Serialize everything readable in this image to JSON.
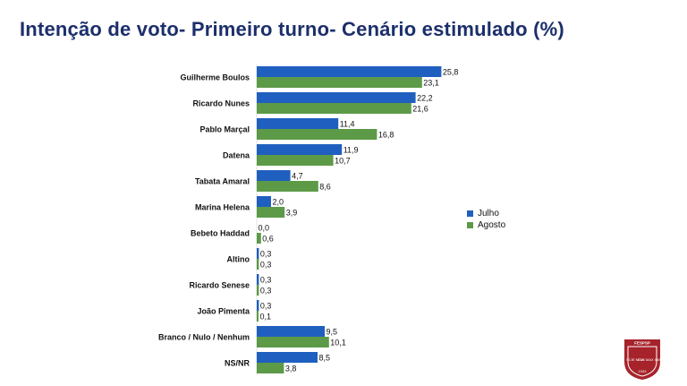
{
  "header": {
    "title": "Intenção de voto- Primeiro turno- Cenário estimulado (%)"
  },
  "colors": {
    "julho": "#1f5fbf",
    "agosto": "#5c9a48",
    "title": "#1c2f6b",
    "logo": "#a6232b"
  },
  "legend": [
    {
      "label": "Julho",
      "color": "#1f5fbf"
    },
    {
      "label": "Agosto",
      "color": "#5c9a48"
    }
  ],
  "chart_data": {
    "type": "bar",
    "orientation": "horizontal",
    "title": "Intenção de voto- Primeiro turno- Cenário estimulado (%)",
    "categories": [
      "Guilherme Boulos",
      "Ricardo Nunes",
      "Pablo Marçal",
      "Datena",
      "Tabata Amaral",
      "Marina Helena",
      "Bebeto Haddad",
      "Altino",
      "Ricardo Senese",
      "João Pimenta",
      "Branco / Nulo / Nenhum",
      "NS/NR"
    ],
    "series": [
      {
        "name": "Julho",
        "values": [
          25.8,
          22.2,
          11.4,
          11.9,
          4.7,
          2.0,
          0.0,
          0.3,
          0.3,
          0.3,
          9.5,
          8.5
        ],
        "labels": [
          "25,8",
          "22,2",
          "11,4",
          "11,9",
          "4,7",
          "2,0",
          "0,0",
          "0,3",
          "0,3",
          "0,3",
          "9,5",
          "8,5"
        ]
      },
      {
        "name": "Agosto",
        "values": [
          23.1,
          21.6,
          16.8,
          10.7,
          8.6,
          3.9,
          0.6,
          0.3,
          0.3,
          0.1,
          10.1,
          3.8
        ],
        "labels": [
          "23,1",
          "21,6",
          "16,8",
          "10,7",
          "8,6",
          "3,9",
          "0,6",
          "0,3",
          "0,3",
          "0,1",
          "10,1",
          "3,8"
        ]
      }
    ],
    "xlim": [
      0,
      26
    ],
    "grid": false,
    "legend_position": "right"
  },
  "logo": {
    "top_text": "FESPSP",
    "left_text": "SCIE NTIA",
    "right_text": "LUX MAX IMA",
    "year": "1933"
  }
}
